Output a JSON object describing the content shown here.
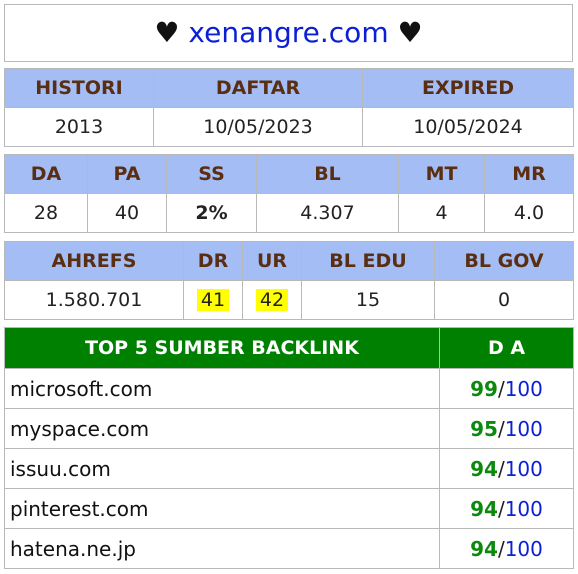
{
  "title": {
    "heart_left": "♥",
    "site": "xenangre.com",
    "heart_right": "♥"
  },
  "registration": {
    "headers": [
      "HISTORI",
      "DAFTAR",
      "EXPIRED"
    ],
    "values": [
      "2013",
      "10/05/2023",
      "10/05/2024"
    ]
  },
  "metrics": {
    "headers": [
      "DA",
      "PA",
      "SS",
      "BL",
      "MT",
      "MR"
    ],
    "values": [
      "28",
      "40",
      "2%",
      "4.307",
      "4",
      "4.0"
    ]
  },
  "ahrefs": {
    "headers": [
      "AHREFS",
      "DR",
      "UR",
      "BL EDU",
      "BL GOV"
    ],
    "values": [
      "1.580.701",
      "41",
      "42",
      "15",
      "0"
    ]
  },
  "backlinks": {
    "headers": [
      "TOP 5 SUMBER BACKLINK",
      "D A"
    ],
    "max": "100",
    "separator": "/",
    "rows": [
      {
        "domain": "microsoft.com",
        "da": "99"
      },
      {
        "domain": "myspace.com",
        "da": "95"
      },
      {
        "domain": "issuu.com",
        "da": "94"
      },
      {
        "domain": "pinterest.com",
        "da": "94"
      },
      {
        "domain": "hatena.ne.jp",
        "da": "94"
      }
    ]
  },
  "colors": {
    "header_bg": "#a4bdf5",
    "header_text": "#5a2e12",
    "backlink_header_bg": "#008000",
    "site_title": "#0a1fd6",
    "positive": "#0d8a0d",
    "highlight": "#ffff00"
  }
}
